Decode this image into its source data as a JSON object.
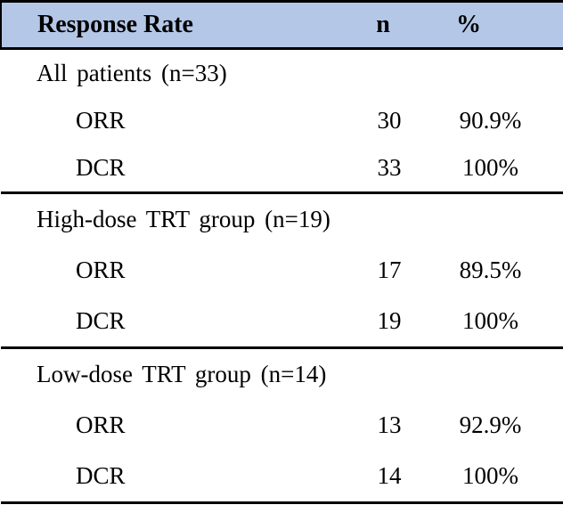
{
  "table": {
    "header": {
      "response_rate": "Response Rate",
      "n": "n",
      "percent": "%"
    },
    "sections": [
      {
        "title": "All patients (n=33)",
        "rows": [
          {
            "label": "ORR",
            "n": "30",
            "percent": "90.9%"
          },
          {
            "label": "DCR",
            "n": "33",
            "percent": "100%"
          }
        ]
      },
      {
        "title": "High-dose TRT group (n=19)",
        "rows": [
          {
            "label": "ORR",
            "n": "17",
            "percent": "89.5%"
          },
          {
            "label": "DCR",
            "n": "19",
            "percent": "100%"
          }
        ]
      },
      {
        "title": "Low-dose TRT group (n=14)",
        "rows": [
          {
            "label": "ORR",
            "n": "13",
            "percent": "92.9%"
          },
          {
            "label": "DCR",
            "n": "14",
            "percent": "100%"
          }
        ]
      }
    ],
    "colors": {
      "header_bg": "#b4c7e7",
      "border": "#000000"
    }
  }
}
